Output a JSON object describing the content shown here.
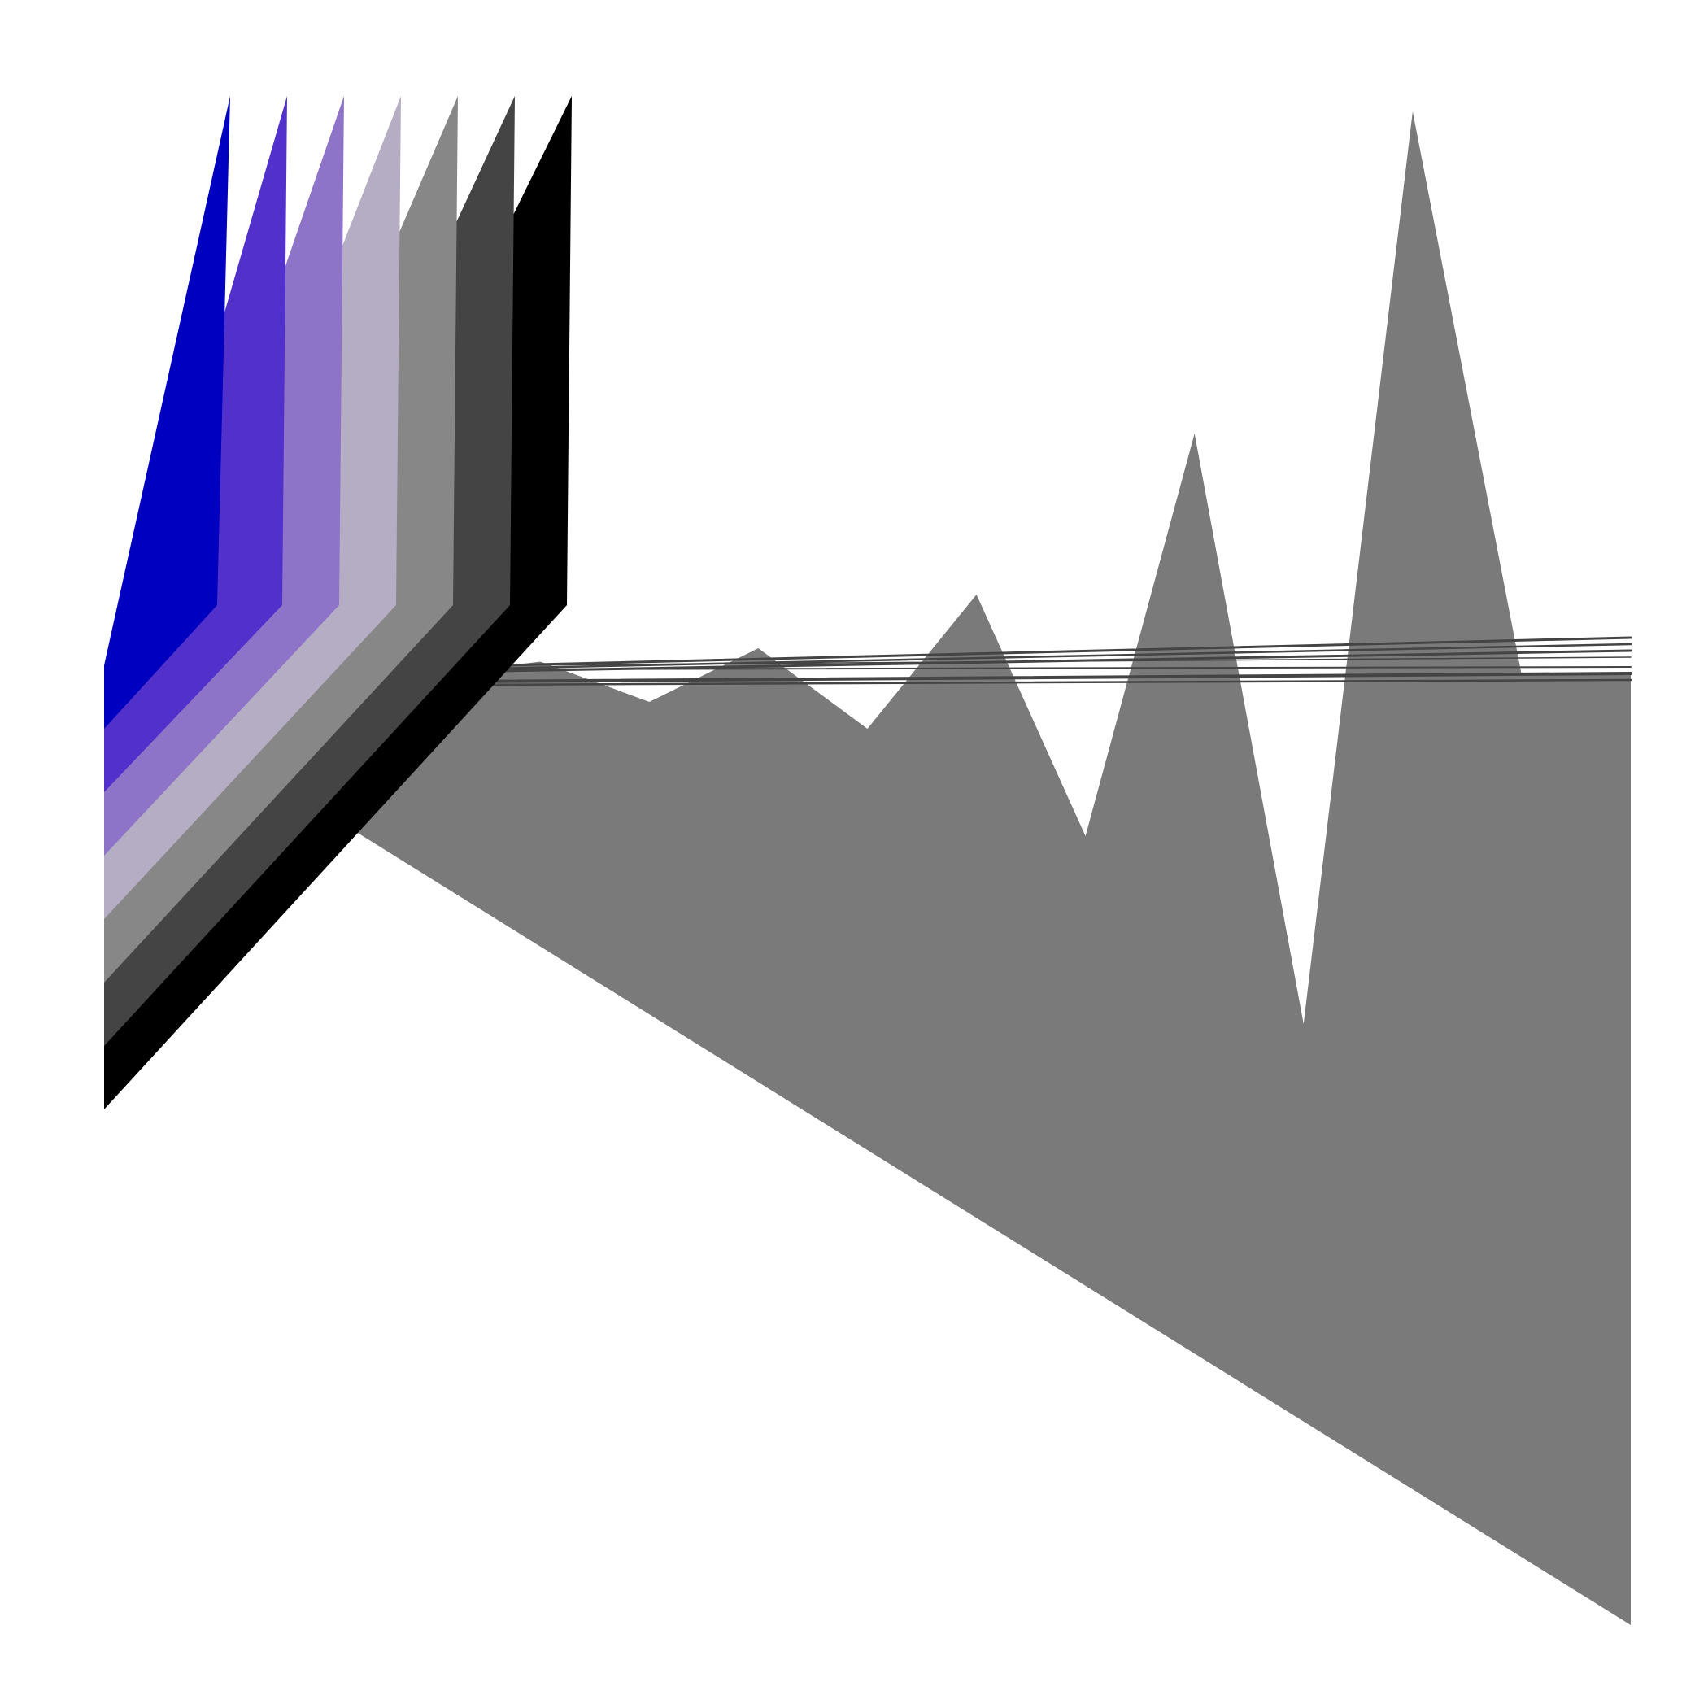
{
  "chart_data": [
    {
      "type": "area",
      "title": "",
      "xlabel": "",
      "ylabel": "",
      "grid": false,
      "legend": "none",
      "colors": [
        "#0000C0",
        "#5230CC",
        "#8E74C8",
        "#B5ADC3",
        "#878787",
        "#444444",
        "#000000"
      ],
      "x": [
        0,
        1,
        2
      ],
      "series": [
        {
          "values": [
            0,
            8,
            9
          ]
        },
        {
          "values": [
            0,
            8,
            9
          ]
        },
        {
          "values": [
            0,
            8,
            9
          ]
        },
        {
          "values": [
            0,
            8,
            9
          ]
        },
        {
          "values": [
            0,
            8,
            9
          ]
        },
        {
          "values": [
            0,
            8,
            9
          ]
        },
        {
          "values": [
            0,
            8,
            9
          ]
        }
      ]
    },
    {
      "type": "area",
      "title": "",
      "xlabel": "",
      "ylabel": "",
      "grid": false,
      "legend": "none",
      "color": "#7A7A7A",
      "line_color": "#444444",
      "x": [
        0,
        1,
        2,
        3,
        4,
        5,
        6,
        7,
        8,
        9,
        10,
        11,
        12,
        13,
        14
      ],
      "values": [
        0,
        0.1,
        0.1,
        0,
        0.05,
        -0.1,
        0.1,
        -0.2,
        0.3,
        -0.6,
        0.9,
        -1.3,
        2.1,
        0,
        0
      ]
    }
  ]
}
